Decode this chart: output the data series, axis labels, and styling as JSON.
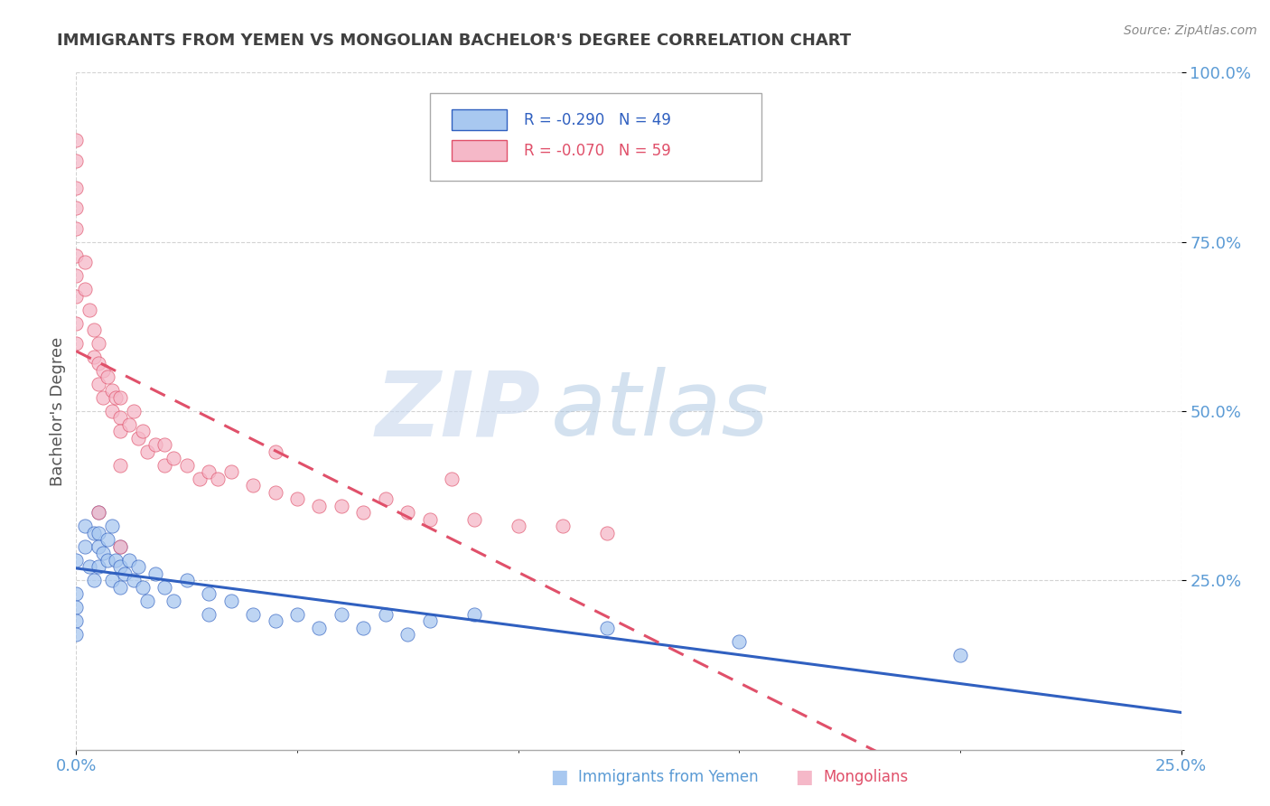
{
  "title": "IMMIGRANTS FROM YEMEN VS MONGOLIAN BACHELOR'S DEGREE CORRELATION CHART",
  "source_text": "Source: ZipAtlas.com",
  "ylabel": "Bachelor's Degree",
  "xlim": [
    0.0,
    0.25
  ],
  "ylim": [
    0.0,
    1.0
  ],
  "legend_r_yemen": "R = -0.290",
  "legend_n_yemen": "N = 49",
  "legend_r_mongol": "R = -0.070",
  "legend_n_mongol": "N = 59",
  "color_yemen": "#a8c8f0",
  "color_mongol": "#f5b8c8",
  "trendline_yemen_color": "#3060c0",
  "trendline_mongol_color": "#e0506a",
  "watermark_zip": "ZIP",
  "watermark_atlas": "atlas",
  "background_color": "#ffffff",
  "grid_color": "#c8c8c8",
  "axis_label_color": "#5b9bd5",
  "title_color": "#404040",
  "yemen_x": [
    0.0,
    0.0,
    0.0,
    0.0,
    0.0,
    0.002,
    0.002,
    0.003,
    0.004,
    0.004,
    0.005,
    0.005,
    0.005,
    0.005,
    0.006,
    0.007,
    0.007,
    0.008,
    0.008,
    0.009,
    0.01,
    0.01,
    0.01,
    0.011,
    0.012,
    0.013,
    0.014,
    0.015,
    0.016,
    0.018,
    0.02,
    0.022,
    0.025,
    0.03,
    0.03,
    0.035,
    0.04,
    0.045,
    0.05,
    0.055,
    0.06,
    0.065,
    0.07,
    0.075,
    0.08,
    0.09,
    0.12,
    0.15,
    0.2
  ],
  "yemen_y": [
    0.28,
    0.23,
    0.21,
    0.19,
    0.17,
    0.33,
    0.3,
    0.27,
    0.32,
    0.25,
    0.35,
    0.32,
    0.3,
    0.27,
    0.29,
    0.31,
    0.28,
    0.33,
    0.25,
    0.28,
    0.3,
    0.27,
    0.24,
    0.26,
    0.28,
    0.25,
    0.27,
    0.24,
    0.22,
    0.26,
    0.24,
    0.22,
    0.25,
    0.23,
    0.2,
    0.22,
    0.2,
    0.19,
    0.2,
    0.18,
    0.2,
    0.18,
    0.2,
    0.17,
    0.19,
    0.2,
    0.18,
    0.16,
    0.14
  ],
  "mongol_x": [
    0.0,
    0.0,
    0.0,
    0.0,
    0.0,
    0.0,
    0.0,
    0.0,
    0.0,
    0.0,
    0.002,
    0.002,
    0.003,
    0.004,
    0.004,
    0.005,
    0.005,
    0.005,
    0.006,
    0.006,
    0.007,
    0.008,
    0.008,
    0.009,
    0.01,
    0.01,
    0.01,
    0.012,
    0.013,
    0.014,
    0.015,
    0.016,
    0.018,
    0.02,
    0.02,
    0.022,
    0.025,
    0.028,
    0.03,
    0.032,
    0.035,
    0.04,
    0.045,
    0.05,
    0.055,
    0.06,
    0.065,
    0.07,
    0.075,
    0.08,
    0.09,
    0.1,
    0.11,
    0.12,
    0.085,
    0.045,
    0.01,
    0.01,
    0.005
  ],
  "mongol_y": [
    0.9,
    0.87,
    0.83,
    0.8,
    0.77,
    0.73,
    0.7,
    0.67,
    0.63,
    0.6,
    0.72,
    0.68,
    0.65,
    0.62,
    0.58,
    0.6,
    0.57,
    0.54,
    0.56,
    0.52,
    0.55,
    0.53,
    0.5,
    0.52,
    0.52,
    0.49,
    0.47,
    0.48,
    0.5,
    0.46,
    0.47,
    0.44,
    0.45,
    0.45,
    0.42,
    0.43,
    0.42,
    0.4,
    0.41,
    0.4,
    0.41,
    0.39,
    0.38,
    0.37,
    0.36,
    0.36,
    0.35,
    0.37,
    0.35,
    0.34,
    0.34,
    0.33,
    0.33,
    0.32,
    0.4,
    0.44,
    0.42,
    0.3,
    0.35
  ]
}
